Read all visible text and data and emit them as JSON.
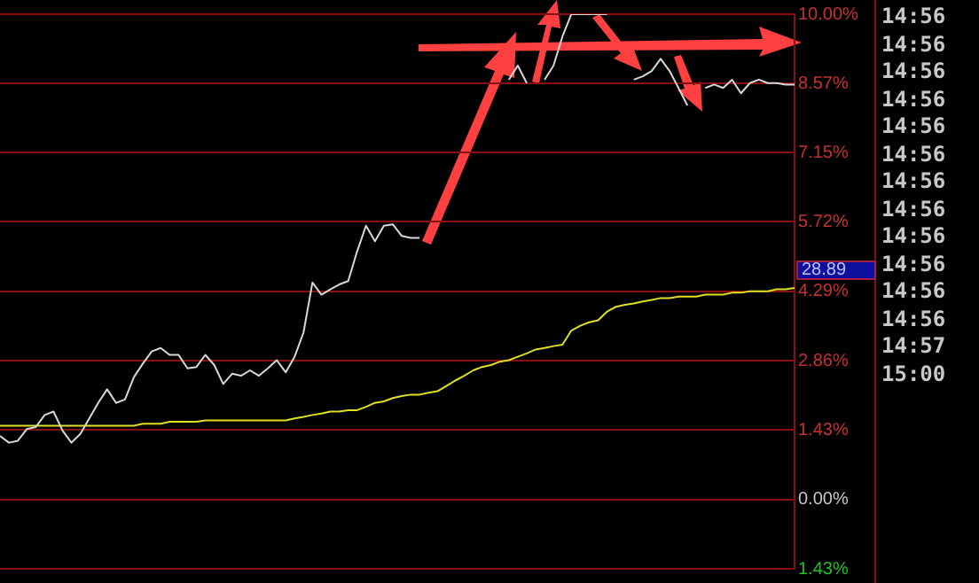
{
  "chart_data": {
    "type": "line",
    "categories": [
      null,
      null,
      null,
      null,
      null,
      null,
      null,
      null,
      null,
      null,
      null,
      null,
      null,
      null,
      null,
      null,
      null,
      null,
      null,
      null,
      null,
      null,
      null,
      null,
      null,
      null,
      null,
      null,
      null,
      null,
      null,
      null,
      null,
      null,
      null,
      null,
      null,
      null,
      null,
      null,
      null,
      null,
      null,
      null,
      null,
      null,
      null,
      null,
      null,
      null,
      null,
      null,
      null,
      null,
      null,
      null,
      null,
      null,
      null,
      null,
      null,
      null,
      null,
      null,
      null,
      null,
      null,
      null,
      null,
      null,
      null,
      null,
      null,
      null,
      null,
      null,
      null,
      null,
      null,
      null,
      null,
      null,
      null,
      null,
      null,
      null,
      null,
      null,
      null,
      null
    ],
    "series": [
      {
        "color": "#d8d8d8",
        "values": [
          1.31,
          1.17,
          1.21,
          1.45,
          1.49,
          1.74,
          1.81,
          1.42,
          1.17,
          1.35,
          1.67,
          1.99,
          2.27,
          1.99,
          2.06,
          2.52,
          2.8,
          3.05,
          3.12,
          2.98,
          2.98,
          2.7,
          2.73,
          2.98,
          2.77,
          2.38,
          2.59,
          2.55,
          2.66,
          2.55,
          2.7,
          2.87,
          2.62,
          2.94,
          3.44,
          4.47,
          4.22,
          4.33,
          4.43,
          4.5,
          5.11,
          5.64,
          5.32,
          5.64,
          5.67,
          5.43,
          5.39,
          5.39,
          null,
          null,
          null,
          null,
          null,
          null,
          null,
          null,
          null,
          8.65,
          8.94,
          8.58,
          null,
          8.65,
          8.94,
          9.54,
          10.0,
          10.0,
          10.0,
          10.0,
          10.0,
          null,
          null,
          8.65,
          8.72,
          8.83,
          9.08,
          8.83,
          8.48,
          8.12,
          null,
          8.48,
          8.55,
          8.48,
          8.65,
          8.37,
          8.58,
          8.65,
          8.58,
          8.58,
          8.55,
          8.55
        ]
      },
      {
        "color": "#e0e020",
        "values": [
          1.52,
          1.52,
          1.52,
          1.52,
          1.52,
          1.52,
          1.52,
          1.52,
          1.52,
          1.52,
          1.52,
          1.52,
          1.52,
          1.52,
          1.52,
          1.52,
          1.56,
          1.56,
          1.56,
          1.6,
          1.6,
          1.6,
          1.6,
          1.63,
          1.63,
          1.63,
          1.63,
          1.63,
          1.63,
          1.63,
          1.63,
          1.63,
          1.63,
          1.67,
          1.7,
          1.74,
          1.77,
          1.81,
          1.81,
          1.84,
          1.84,
          1.91,
          1.99,
          2.02,
          2.09,
          2.13,
          2.16,
          2.16,
          2.2,
          2.23,
          2.34,
          2.45,
          2.55,
          2.66,
          2.73,
          2.77,
          2.84,
          2.87,
          2.94,
          3.01,
          3.09,
          3.12,
          3.16,
          3.19,
          3.48,
          3.58,
          3.65,
          3.69,
          3.87,
          3.97,
          4.01,
          4.04,
          4.08,
          4.11,
          4.15,
          4.15,
          4.18,
          4.18,
          4.18,
          4.22,
          4.22,
          4.22,
          4.26,
          4.26,
          4.29,
          4.29,
          4.29,
          4.33,
          4.33,
          4.36
        ]
      }
    ],
    "ylim": [
      -1.43,
      10.0
    ],
    "yticks": [
      {
        "value": 10.0,
        "label": "10.00%"
      },
      {
        "value": 8.57,
        "label": "8.57%"
      },
      {
        "value": 7.15,
        "label": "7.15%"
      },
      {
        "value": 5.72,
        "label": "5.72%"
      },
      {
        "value": 4.29,
        "label": "4.29%"
      },
      {
        "value": 2.86,
        "label": "2.86%"
      },
      {
        "value": 1.43,
        "label": "1.43%"
      },
      {
        "value": 0,
        "label": "0.00%"
      },
      {
        "value": -1.43,
        "label": "1.43%"
      }
    ],
    "grid": "y",
    "legend": false,
    "marker": "none",
    "line_style": "solid",
    "tick_labels": "y",
    "annotations": [
      "28.89",
      "14:56",
      "14:56",
      "14:56",
      "14:56",
      "14:56",
      "14:56",
      "14:56",
      "14:56",
      "14:56",
      "14:56",
      "14:56",
      "14:56",
      "14:57",
      "15:00"
    ]
  }
}
